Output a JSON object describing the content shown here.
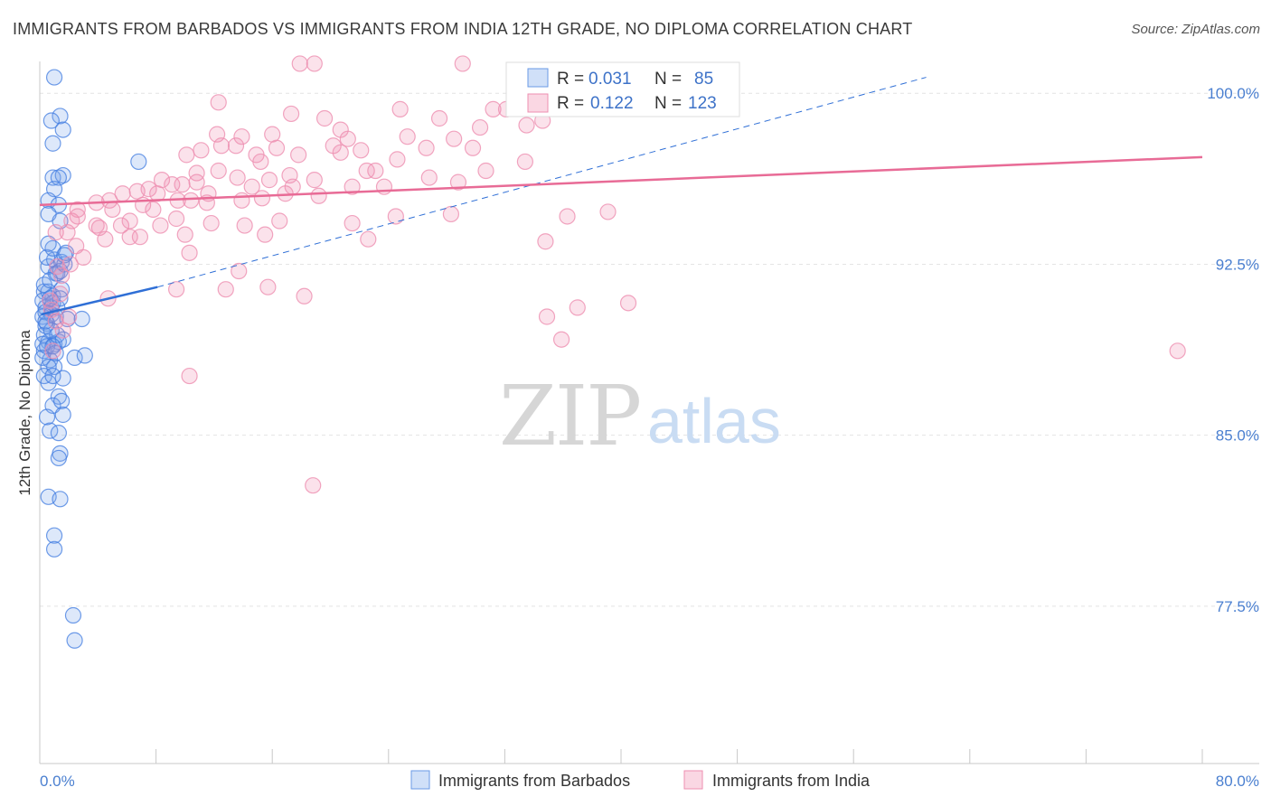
{
  "title": "IMMIGRANTS FROM BARBADOS VS IMMIGRANTS FROM INDIA 12TH GRADE, NO DIPLOMA CORRELATION CHART",
  "source": "Source: ZipAtlas.com",
  "watermark": {
    "zip": "ZIP",
    "atlas": "atlas"
  },
  "legend": {
    "rows": [
      {
        "r_label": "R =",
        "r_value": "0.031",
        "n_label": "N =",
        "n_value": "85"
      },
      {
        "r_label": "R =",
        "r_value": "0.122",
        "n_label": "N =",
        "n_value": "123"
      }
    ]
  },
  "bottom_legend": [
    "Immigrants from Barbados",
    "Immigrants from India"
  ],
  "colors": {
    "barbados_fill": "rgba(120,165,235,0.25)",
    "barbados_stroke": "#3f7be0",
    "barbados_line": "#2f6fd6",
    "india_fill": "rgba(240,140,175,0.25)",
    "india_stroke": "#ee8fb0",
    "india_line": "#e86b96",
    "grid": "#e4e4e4",
    "tick_label": "#4a7fd0"
  },
  "chart_data": {
    "type": "scatter",
    "title": "IMMIGRANTS FROM BARBADOS VS IMMIGRANTS FROM INDIA 12TH GRADE, NO DIPLOMA CORRELATION CHART",
    "xlabel": "",
    "ylabel": "12th Grade, No Diploma",
    "xlim": [
      0,
      80
    ],
    "ylim": [
      70.6,
      101.0
    ],
    "x_tick_labels": [
      "0.0%",
      "80.0%"
    ],
    "y_ticks": [
      77.5,
      85.0,
      92.5,
      100.0
    ],
    "y_tick_labels": [
      "77.5%",
      "85.0%",
      "92.5%",
      "100.0%"
    ],
    "x_minor_ticks": [
      0,
      8,
      16,
      24,
      32,
      40,
      48,
      56,
      64,
      72,
      80
    ],
    "series": [
      {
        "name": "Immigrants from Barbados",
        "R": 0.031,
        "N": 85,
        "trend_solid": [
          [
            0.1,
            90.3
          ],
          [
            8.1,
            91.5
          ]
        ],
        "trend_dashed": [
          [
            8.1,
            91.5
          ],
          [
            61.0,
            100.7
          ]
        ],
        "points": [
          [
            1.0,
            100.7
          ],
          [
            1.4,
            99.0
          ],
          [
            0.8,
            98.8
          ],
          [
            1.6,
            98.4
          ],
          [
            0.9,
            97.8
          ],
          [
            6.8,
            97.0
          ],
          [
            0.9,
            96.3
          ],
          [
            1.6,
            96.4
          ],
          [
            1.3,
            96.3
          ],
          [
            1.0,
            95.8
          ],
          [
            0.6,
            95.3
          ],
          [
            1.3,
            95.1
          ],
          [
            0.6,
            94.7
          ],
          [
            1.4,
            94.4
          ],
          [
            0.6,
            92.4
          ],
          [
            1.0,
            92.7
          ],
          [
            1.5,
            92.6
          ],
          [
            1.1,
            92.1
          ],
          [
            1.2,
            92.1
          ],
          [
            1.4,
            92.2
          ],
          [
            1.7,
            92.5
          ],
          [
            0.3,
            91.3
          ],
          [
            0.9,
            91.1
          ],
          [
            1.5,
            91.4
          ],
          [
            0.2,
            90.9
          ],
          [
            0.4,
            90.6
          ],
          [
            0.6,
            91.3
          ],
          [
            0.8,
            90.6
          ],
          [
            1.2,
            90.6
          ],
          [
            0.2,
            90.2
          ],
          [
            0.5,
            89.9
          ],
          [
            0.8,
            90.3
          ],
          [
            0.4,
            90.4
          ],
          [
            0.9,
            90.8
          ],
          [
            1.1,
            90.2
          ],
          [
            1.9,
            90.1
          ],
          [
            2.9,
            90.1
          ],
          [
            0.3,
            89.4
          ],
          [
            0.6,
            89.1
          ],
          [
            1.0,
            89.0
          ],
          [
            1.3,
            89.1
          ],
          [
            0.3,
            88.7
          ],
          [
            0.5,
            88.9
          ],
          [
            0.7,
            88.3
          ],
          [
            1.0,
            88.0
          ],
          [
            0.2,
            88.4
          ],
          [
            0.6,
            88.0
          ],
          [
            2.4,
            88.4
          ],
          [
            3.1,
            88.5
          ],
          [
            0.3,
            87.6
          ],
          [
            0.6,
            87.3
          ],
          [
            1.6,
            87.5
          ],
          [
            0.9,
            87.6
          ],
          [
            1.3,
            86.7
          ],
          [
            0.9,
            86.3
          ],
          [
            1.5,
            86.5
          ],
          [
            1.6,
            85.9
          ],
          [
            0.7,
            85.2
          ],
          [
            1.3,
            85.1
          ],
          [
            0.5,
            85.8
          ],
          [
            1.4,
            84.2
          ],
          [
            1.3,
            84.0
          ],
          [
            0.6,
            82.3
          ],
          [
            1.4,
            82.2
          ],
          [
            1.0,
            80.6
          ],
          [
            1.0,
            80.0
          ],
          [
            2.3,
            77.1
          ],
          [
            2.4,
            76.0
          ],
          [
            0.3,
            91.6
          ],
          [
            0.7,
            91.0
          ],
          [
            1.2,
            89.4
          ],
          [
            0.4,
            89.8
          ],
          [
            0.8,
            89.6
          ],
          [
            1.6,
            89.2
          ],
          [
            0.5,
            92.8
          ],
          [
            1.8,
            93.0
          ],
          [
            0.9,
            93.2
          ],
          [
            1.1,
            88.6
          ],
          [
            0.2,
            89.0
          ],
          [
            0.7,
            91.8
          ],
          [
            1.4,
            91.0
          ],
          [
            0.4,
            90.0
          ],
          [
            0.9,
            88.9
          ],
          [
            1.7,
            92.9
          ],
          [
            0.6,
            93.4
          ]
        ]
      },
      {
        "name": "Immigrants from India",
        "R": 0.122,
        "N": 123,
        "trend": [
          [
            0.0,
            95.1
          ],
          [
            80.0,
            97.2
          ]
        ],
        "points": [
          [
            17.9,
            101.3
          ],
          [
            18.9,
            101.3
          ],
          [
            29.1,
            101.3
          ],
          [
            12.3,
            99.6
          ],
          [
            17.3,
            99.1
          ],
          [
            19.6,
            98.9
          ],
          [
            24.8,
            99.3
          ],
          [
            27.5,
            98.9
          ],
          [
            31.2,
            99.3
          ],
          [
            32.1,
            99.3
          ],
          [
            34.6,
            98.8
          ],
          [
            25.3,
            98.1
          ],
          [
            28.5,
            98.0
          ],
          [
            12.2,
            98.2
          ],
          [
            13.9,
            98.1
          ],
          [
            16.0,
            98.2
          ],
          [
            21.2,
            98.0
          ],
          [
            12.5,
            97.7
          ],
          [
            13.5,
            97.7
          ],
          [
            16.3,
            97.6
          ],
          [
            20.2,
            97.7
          ],
          [
            20.7,
            97.4
          ],
          [
            24.6,
            97.1
          ],
          [
            29.8,
            97.6
          ],
          [
            33.4,
            97.0
          ],
          [
            10.1,
            97.3
          ],
          [
            10.8,
            96.5
          ],
          [
            12.3,
            96.6
          ],
          [
            13.6,
            96.3
          ],
          [
            17.2,
            96.4
          ],
          [
            22.5,
            96.6
          ],
          [
            23.1,
            96.6
          ],
          [
            26.8,
            96.3
          ],
          [
            28.8,
            96.1
          ],
          [
            30.7,
            96.6
          ],
          [
            8.4,
            96.2
          ],
          [
            9.1,
            96.0
          ],
          [
            10.8,
            96.1
          ],
          [
            11.6,
            95.6
          ],
          [
            14.6,
            95.9
          ],
          [
            15.8,
            96.2
          ],
          [
            17.4,
            95.9
          ],
          [
            18.9,
            96.2
          ],
          [
            21.5,
            95.9
          ],
          [
            23.7,
            95.9
          ],
          [
            2.6,
            94.9
          ],
          [
            3.9,
            95.2
          ],
          [
            5.7,
            95.6
          ],
          [
            6.7,
            95.7
          ],
          [
            7.5,
            95.8
          ],
          [
            8.1,
            95.6
          ],
          [
            9.5,
            95.3
          ],
          [
            10.4,
            95.3
          ],
          [
            11.5,
            95.2
          ],
          [
            13.9,
            95.3
          ],
          [
            15.3,
            95.4
          ],
          [
            16.9,
            95.6
          ],
          [
            19.2,
            95.5
          ],
          [
            4.8,
            95.3
          ],
          [
            7.8,
            94.9
          ],
          [
            2.2,
            94.4
          ],
          [
            4.1,
            94.1
          ],
          [
            5.6,
            94.2
          ],
          [
            6.2,
            94.4
          ],
          [
            8.3,
            94.2
          ],
          [
            9.4,
            94.5
          ],
          [
            10.0,
            93.8
          ],
          [
            11.8,
            94.3
          ],
          [
            14.1,
            94.2
          ],
          [
            16.5,
            94.4
          ],
          [
            21.5,
            94.3
          ],
          [
            24.5,
            94.6
          ],
          [
            28.3,
            94.7
          ],
          [
            36.3,
            94.6
          ],
          [
            39.1,
            94.8
          ],
          [
            1.1,
            93.9
          ],
          [
            1.9,
            93.9
          ],
          [
            3.9,
            94.2
          ],
          [
            6.2,
            93.7
          ],
          [
            6.9,
            93.7
          ],
          [
            2.5,
            93.3
          ],
          [
            4.5,
            93.6
          ],
          [
            10.3,
            93.0
          ],
          [
            15.5,
            93.8
          ],
          [
            22.6,
            93.6
          ],
          [
            34.8,
            93.5
          ],
          [
            1.2,
            92.4
          ],
          [
            2.1,
            92.5
          ],
          [
            3.0,
            92.8
          ],
          [
            1.5,
            92.0
          ],
          [
            13.7,
            92.2
          ],
          [
            15.7,
            91.5
          ],
          [
            12.8,
            91.4
          ],
          [
            18.2,
            91.1
          ],
          [
            9.4,
            91.4
          ],
          [
            4.7,
            91.0
          ],
          [
            37.0,
            90.6
          ],
          [
            40.5,
            90.8
          ],
          [
            34.9,
            90.2
          ],
          [
            0.8,
            90.5
          ],
          [
            1.1,
            90.0
          ],
          [
            2.0,
            90.2
          ],
          [
            1.6,
            89.6
          ],
          [
            0.9,
            88.7
          ],
          [
            35.9,
            89.2
          ],
          [
            78.3,
            88.7
          ],
          [
            10.3,
            87.6
          ],
          [
            18.8,
            82.8
          ],
          [
            0.7,
            90.9
          ],
          [
            1.4,
            91.2
          ],
          [
            2.6,
            94.6
          ],
          [
            5.0,
            94.9
          ],
          [
            7.1,
            95.1
          ],
          [
            9.8,
            96.0
          ],
          [
            11.1,
            97.5
          ],
          [
            14.9,
            97.3
          ],
          [
            17.8,
            97.3
          ],
          [
            22.1,
            97.5
          ],
          [
            26.6,
            97.6
          ],
          [
            30.3,
            98.5
          ],
          [
            33.5,
            98.6
          ],
          [
            20.7,
            98.4
          ],
          [
            15.2,
            97.0
          ]
        ]
      }
    ]
  }
}
